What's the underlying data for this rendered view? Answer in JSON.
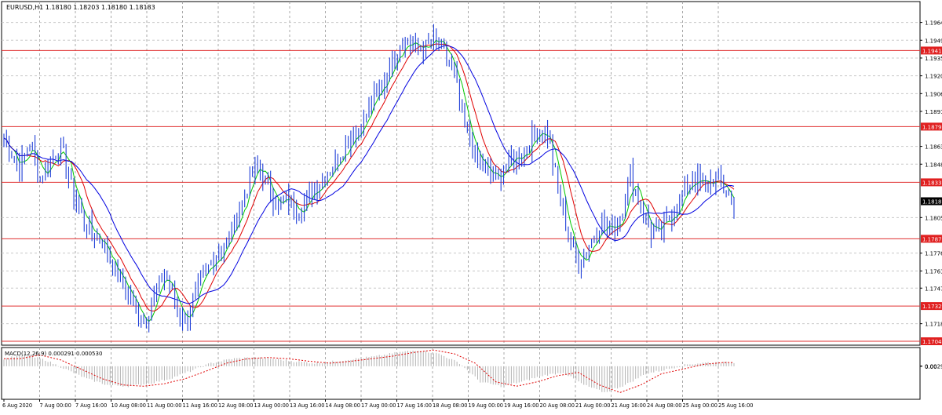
{
  "chart_data": {
    "type": "candlestick",
    "header": "EURUSD,H1  1.18180 1.18203 1.18180 1.18183",
    "ylim": [
      1.1701,
      1.1981
    ],
    "price_ticks": [
      "1.19640",
      "1.19495",
      "1.19350",
      "1.19205",
      "1.19060",
      "1.18915",
      "1.18630",
      "1.18485",
      "1.18050",
      "1.17760",
      "1.17615",
      "1.17475",
      "1.17185"
    ],
    "x_ticks": [
      "6 Aug 2020",
      "7 Aug 00:00",
      "7 Aug 16:00",
      "10 Aug 08:00",
      "11 Aug 00:00",
      "11 Aug 16:00",
      "12 Aug 08:00",
      "13 Aug 00:00",
      "13 Aug 16:00",
      "14 Aug 08:00",
      "17 Aug 00:00",
      "17 Aug 16:00",
      "18 Aug 08:00",
      "19 Aug 00:00",
      "19 Aug 16:00",
      "20 Aug 08:00",
      "21 Aug 00:00",
      "21 Aug 16:00",
      "24 Aug 08:00",
      "25 Aug 00:00",
      "25 Aug 16:00"
    ],
    "levels": [
      {
        "label": "1.19411",
        "value": 1.19411
      },
      {
        "label": "1.18791",
        "value": 1.18791
      },
      {
        "label": "1.18337",
        "value": 1.18337
      },
      {
        "label": "1.17877",
        "value": 1.17877
      },
      {
        "label": "1.17329",
        "value": 1.17329
      },
      {
        "label": "1.17042",
        "value": 1.17042
      }
    ],
    "last_price": {
      "label": "1.18183",
      "value": 1.18183
    },
    "close_path": [
      [
        0,
        1.187
      ],
      [
        3,
        1.1858
      ],
      [
        6,
        1.1845
      ],
      [
        10,
        1.1866
      ],
      [
        14,
        1.1838
      ],
      [
        18,
        1.1852
      ],
      [
        22,
        1.1863
      ],
      [
        26,
        1.183
      ],
      [
        30,
        1.1806
      ],
      [
        34,
        1.1792
      ],
      [
        38,
        1.1786
      ],
      [
        42,
        1.1765
      ],
      [
        46,
        1.175
      ],
      [
        50,
        1.1735
      ],
      [
        54,
        1.172
      ],
      [
        58,
        1.174
      ],
      [
        62,
        1.176
      ],
      [
        66,
        1.1735
      ],
      [
        70,
        1.1722
      ],
      [
        74,
        1.174
      ],
      [
        78,
        1.176
      ],
      [
        82,
        1.1775
      ],
      [
        86,
        1.1785
      ],
      [
        90,
        1.1805
      ],
      [
        94,
        1.183
      ],
      [
        98,
        1.1848
      ],
      [
        102,
        1.183
      ],
      [
        106,
        1.1815
      ],
      [
        110,
        1.182
      ],
      [
        114,
        1.1812
      ],
      [
        118,
        1.1822
      ],
      [
        122,
        1.1835
      ],
      [
        126,
        1.1845
      ],
      [
        130,
        1.1858
      ],
      [
        134,
        1.1872
      ],
      [
        138,
        1.188
      ],
      [
        142,
        1.1898
      ],
      [
        146,
        1.1912
      ],
      [
        150,
        1.1935
      ],
      [
        154,
        1.195
      ],
      [
        158,
        1.1945
      ],
      [
        162,
        1.1942
      ],
      [
        166,
        1.1948
      ],
      [
        170,
        1.194
      ],
      [
        174,
        1.192
      ],
      [
        178,
        1.188
      ],
      [
        182,
        1.1855
      ],
      [
        186,
        1.1842
      ],
      [
        190,
        1.1835
      ],
      [
        194,
        1.1848
      ],
      [
        198,
        1.1855
      ],
      [
        202,
        1.1862
      ],
      [
        206,
        1.1878
      ],
      [
        210,
        1.1872
      ],
      [
        214,
        1.183
      ],
      [
        218,
        1.179
      ],
      [
        222,
        1.1768
      ],
      [
        226,
        1.1782
      ],
      [
        230,
        1.18
      ],
      [
        234,
        1.1795
      ],
      [
        238,
        1.1805
      ],
      [
        242,
        1.184
      ],
      [
        246,
        1.1815
      ],
      [
        250,
        1.1792
      ],
      [
        254,
        1.1795
      ],
      [
        258,
        1.1808
      ],
      [
        262,
        1.1822
      ],
      [
        266,
        1.1838
      ],
      [
        270,
        1.183
      ],
      [
        274,
        1.1836
      ],
      [
        278,
        1.1828
      ],
      [
        282,
        1.1818
      ]
    ],
    "macd": {
      "label": "MACD(12,26,9) 0.000291 0.000530",
      "ylim": [
        -0.0053,
        0.003
      ],
      "ticks": [
        "0.00291",
        "0.00"
      ],
      "path": [
        [
          0,
          0.0012
        ],
        [
          8,
          0.0018
        ],
        [
          16,
          0.001
        ],
        [
          24,
          -0.0005
        ],
        [
          32,
          -0.002
        ],
        [
          40,
          -0.003
        ],
        [
          48,
          -0.0032
        ],
        [
          56,
          -0.0028
        ],
        [
          64,
          -0.002
        ],
        [
          72,
          -0.0008
        ],
        [
          80,
          0.0005
        ],
        [
          88,
          0.0012
        ],
        [
          96,
          0.0014
        ],
        [
          104,
          0.0012
        ],
        [
          112,
          0.0008
        ],
        [
          120,
          0.0005
        ],
        [
          128,
          0.0008
        ],
        [
          136,
          0.0012
        ],
        [
          144,
          0.0016
        ],
        [
          152,
          0.0022
        ],
        [
          160,
          0.0026
        ],
        [
          168,
          0.002
        ],
        [
          176,
          0.0005
        ],
        [
          184,
          -0.0025
        ],
        [
          192,
          -0.0032
        ],
        [
          200,
          -0.0025
        ],
        [
          208,
          -0.0015
        ],
        [
          216,
          -0.001
        ],
        [
          224,
          -0.003
        ],
        [
          232,
          -0.0042
        ],
        [
          240,
          -0.003
        ],
        [
          248,
          -0.0012
        ],
        [
          256,
          -0.0005
        ],
        [
          264,
          0.0003
        ],
        [
          272,
          0.0006
        ],
        [
          280,
          0.0006
        ]
      ]
    }
  }
}
